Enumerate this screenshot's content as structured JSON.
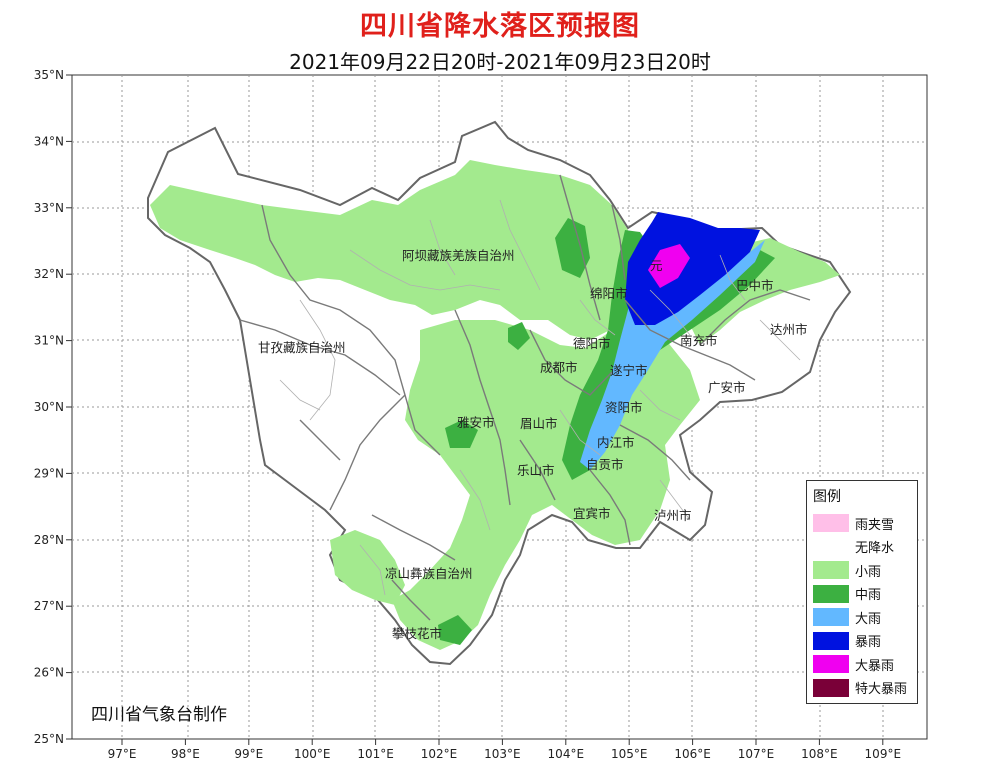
{
  "title": "四川省降水落区预报图",
  "subtitle": "2021年09月22日20时-2021年09月23日20时",
  "y_ticks": [
    "35°N",
    "34°N",
    "33°N",
    "32°N",
    "31°N",
    "30°N",
    "29°N",
    "28°N",
    "27°N",
    "26°N",
    "25°N"
  ],
  "x_ticks": [
    "97°E",
    "98°E",
    "99°E",
    "100°E",
    "101°E",
    "102°E",
    "103°E",
    "104°E",
    "105°E",
    "106°E",
    "107°E",
    "108°E",
    "109°E"
  ],
  "cities": {
    "aba": "阿坝藏族羌族自治州",
    "ganzi": "甘孜藏族自治州",
    "liangshan": "凉山彝族自治州",
    "panzhihua": "攀枝花市",
    "mianyang": "绵阳市",
    "deyang": "德阳市",
    "chengdu": "成都市",
    "yaan": "雅安市",
    "meishan": "眉山市",
    "leshan": "乐山市",
    "ziyang": "资阳市",
    "neijiang": "内江市",
    "zigong": "自贡市",
    "yibin": "宜宾市",
    "luzhou": "泸州市",
    "suining": "遂宁市",
    "nanchong": "南充市",
    "guangan": "广安市",
    "dazhou": "达州市",
    "bazhong": "巴中市",
    "guangyuan": "元"
  },
  "legend": {
    "title": "图例",
    "items": [
      {
        "label": "雨夹雪",
        "color": "#ffbfe8"
      },
      {
        "label": "无降水",
        "color": "#ffffff"
      },
      {
        "label": "小雨",
        "color": "#a3ea8e"
      },
      {
        "label": "中雨",
        "color": "#3cb041"
      },
      {
        "label": "大雨",
        "color": "#62b8ff"
      },
      {
        "label": "暴雨",
        "color": "#0012e0"
      },
      {
        "label": "大暴雨",
        "color": "#f000f0"
      },
      {
        "label": "特大暴雨",
        "color": "#7a0038"
      }
    ]
  },
  "credit": "四川省气象台制作"
}
